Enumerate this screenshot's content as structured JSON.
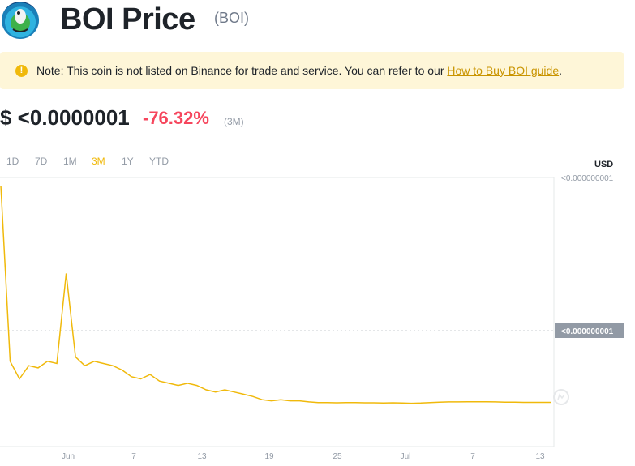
{
  "header": {
    "title": "BOI Price",
    "symbol": "(BOI)"
  },
  "note": {
    "icon": "warning-icon",
    "text": "Note: This coin is not listed on Binance for trade and service. You can refer to our ",
    "link_text": "How to Buy BOI guide",
    "suffix": "."
  },
  "price": {
    "value": "$ <0.0000001",
    "change": "-76.32%",
    "period": "(3M)",
    "change_color": "#f6465d"
  },
  "tabs": [
    {
      "label": "1D",
      "active": false
    },
    {
      "label": "7D",
      "active": false
    },
    {
      "label": "1M",
      "active": false
    },
    {
      "label": "3M",
      "active": true
    },
    {
      "label": "1Y",
      "active": false
    },
    {
      "label": "YTD",
      "active": false
    }
  ],
  "chart_data": {
    "type": "line",
    "currency_label": "USD",
    "y_tick_top": "<0.000000001",
    "y_current_label": "<0.000000001",
    "x_ticks": [
      "Jun",
      "7",
      "13",
      "19",
      "25",
      "Jul",
      "7",
      "13"
    ],
    "line_color": "#f0b90b",
    "series": [
      {
        "values": [
          1.0,
          0.2,
          0.12,
          0.18,
          0.17,
          0.2,
          0.19,
          0.6,
          0.22,
          0.18,
          0.2,
          0.19,
          0.18,
          0.16,
          0.13,
          0.12,
          0.14,
          0.11,
          0.1,
          0.09,
          0.1,
          0.09,
          0.07,
          0.06,
          0.07,
          0.06,
          0.05,
          0.04,
          0.025,
          0.02,
          0.025,
          0.02,
          0.02,
          0.015,
          0.012,
          0.012,
          0.011,
          0.012,
          0.012,
          0.011,
          0.011,
          0.01,
          0.011,
          0.01,
          0.009,
          0.01,
          0.012,
          0.014,
          0.015,
          0.015,
          0.016,
          0.016,
          0.016,
          0.015,
          0.014,
          0.014,
          0.013,
          0.013,
          0.013,
          0.013
        ]
      }
    ],
    "grid": false
  }
}
